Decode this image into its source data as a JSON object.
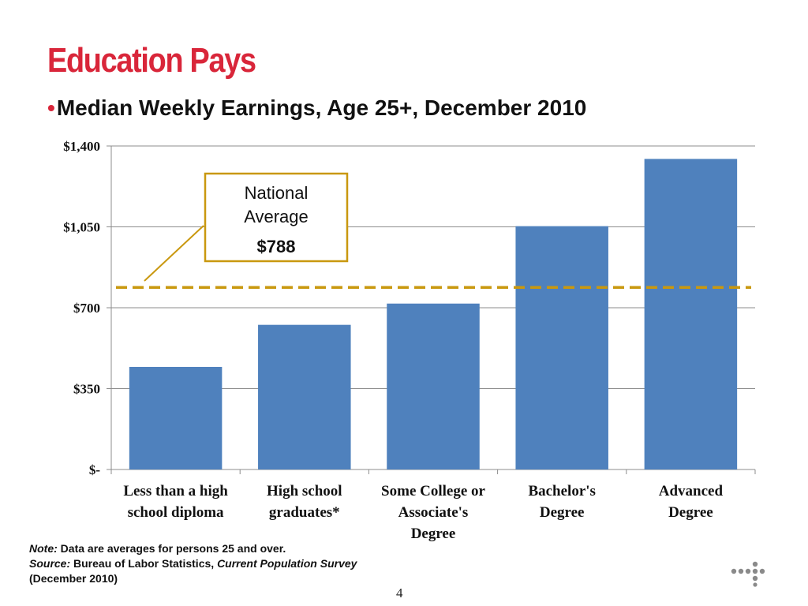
{
  "slide": {
    "title": "Education Pays",
    "bullet": "•",
    "subtitle": "Median Weekly Earnings, Age 25+, December 2010",
    "note_label": "Note:",
    "note_text": " Data are averages for persons 25 and over.",
    "source_label": "Source:",
    "source_text": " Bureau of Labor Statistics, ",
    "source_title": "Current Population Survey",
    "source_date": "(December 2010)",
    "page_number": "4"
  },
  "chart_data": {
    "type": "bar",
    "categories": [
      [
        "Less than a high",
        "school diploma"
      ],
      [
        "High school",
        "graduates*"
      ],
      [
        "Some College or",
        "Associate's",
        "Degree"
      ],
      [
        "Bachelor's",
        "Degree"
      ],
      [
        "Advanced",
        "Degree"
      ]
    ],
    "values": [
      444,
      626,
      718,
      1053,
      1344
    ],
    "ylim": [
      0,
      1400
    ],
    "yticks": [
      0,
      350,
      700,
      1050,
      1400
    ],
    "ytick_labels": [
      "$-",
      "$350",
      "$700",
      "$1,050",
      "$1,400"
    ],
    "grid": true,
    "reference_line": {
      "value": 788,
      "color": "#c9980f",
      "style": "dashed"
    },
    "callout": {
      "lines": [
        "National",
        "Average",
        "$788"
      ],
      "border_color": "#c9980f"
    },
    "bar_color": "#4f81bd"
  }
}
